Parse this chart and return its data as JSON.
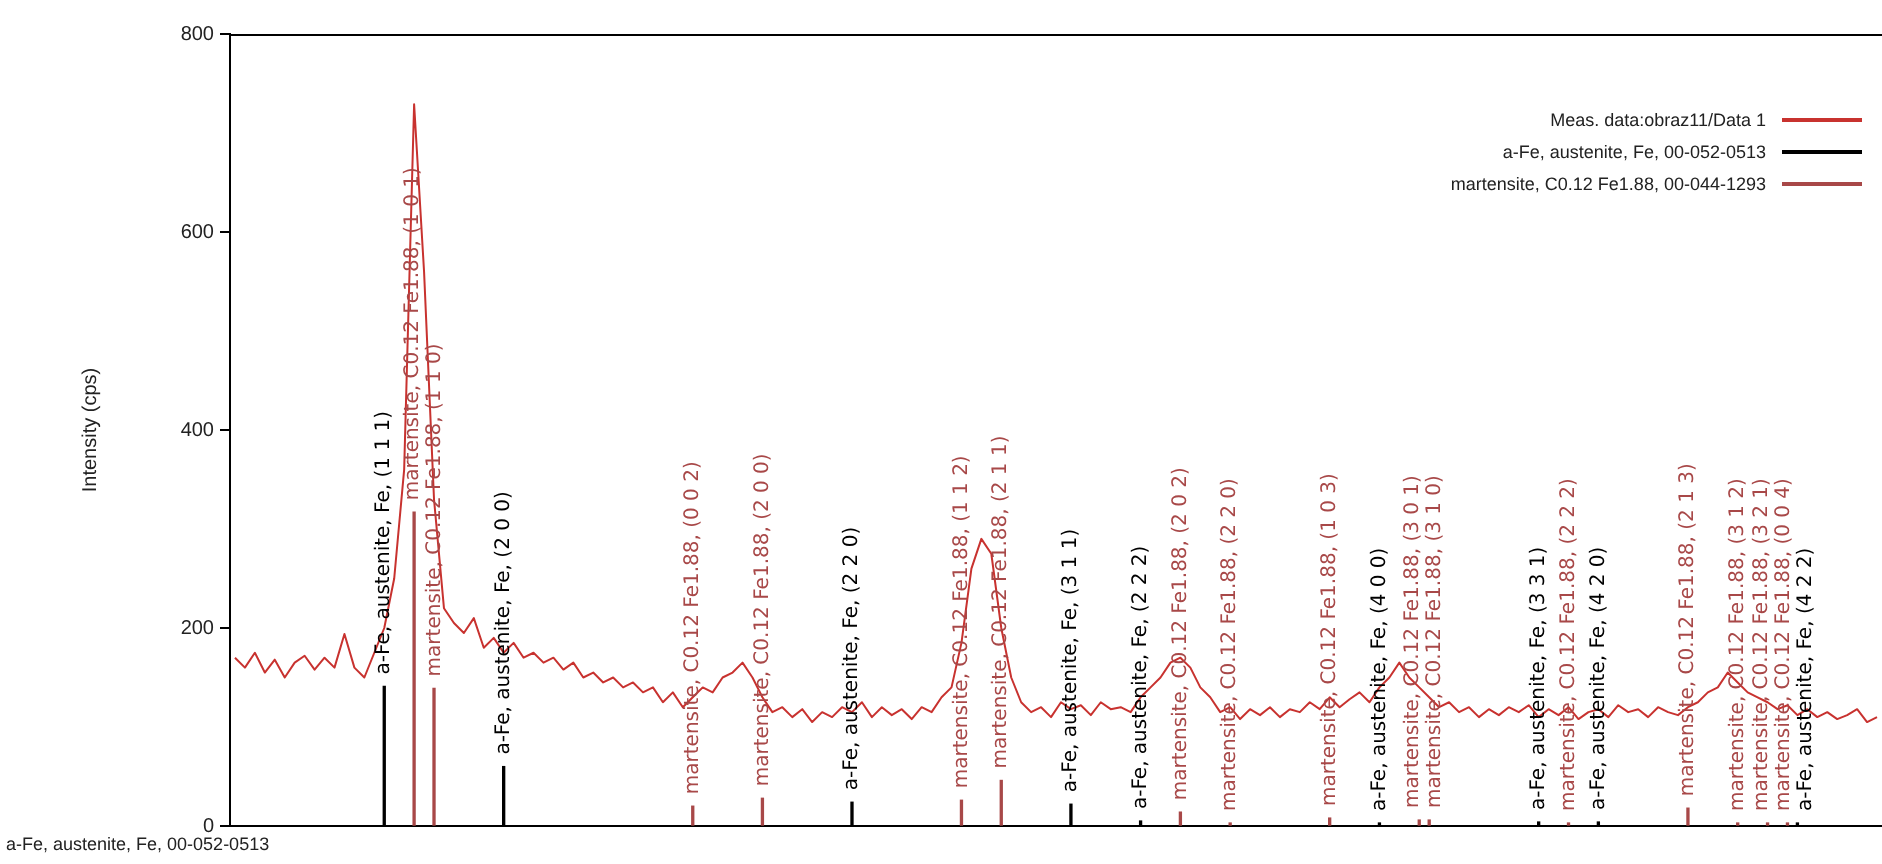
{
  "chart_data": {
    "type": "line",
    "ylabel": "Intensity (cps)",
    "ylim": [
      0,
      800
    ],
    "yticks": [
      0,
      200,
      400,
      600,
      800
    ],
    "grid": false,
    "legend": "top right",
    "tick_labels": "y",
    "marker": "none",
    "annotations": [
      "a-Fe, austenite, Fe, 00-052-0513"
    ],
    "categories": [
      null,
      null,
      null,
      null,
      null,
      null,
      null,
      null,
      null,
      null,
      null,
      null,
      null,
      null,
      null,
      null,
      null,
      null,
      null,
      null,
      null,
      null,
      null,
      null,
      null,
      null,
      null,
      null,
      null,
      null,
      null,
      null,
      null,
      null,
      null,
      null,
      null,
      null,
      null,
      null,
      null,
      null,
      null,
      null,
      null,
      null,
      null,
      null,
      null,
      null,
      null,
      null,
      null,
      null,
      null,
      null,
      null,
      null,
      null,
      null,
      null,
      null,
      null,
      null,
      null,
      null,
      null,
      null,
      null,
      null,
      null,
      null,
      null,
      null,
      null,
      null,
      null,
      null,
      null,
      null,
      null,
      null,
      null,
      null,
      null,
      null,
      null,
      null,
      null,
      null,
      null,
      null,
      null,
      null,
      null,
      null,
      null,
      null,
      null,
      null,
      null,
      null,
      null,
      null,
      null,
      null,
      null,
      null,
      null,
      null,
      null,
      null,
      null,
      null,
      null,
      null,
      null,
      null,
      null,
      null,
      null,
      null,
      null,
      null,
      null,
      null,
      null,
      null,
      null,
      null,
      null,
      null,
      null,
      null,
      null,
      null,
      null,
      null,
      null,
      null,
      null,
      null,
      null,
      null,
      null,
      null,
      null,
      null,
      null,
      null,
      null,
      null,
      null,
      null,
      null,
      null,
      null,
      null,
      null,
      null,
      null,
      null,
      null,
      null,
      null,
      null
    ],
    "series": [
      {
        "name": "Meas. data:obraz11/Data 1",
        "color": "#c8322f",
        "values": [
          170,
          160,
          175,
          155,
          168,
          150,
          165,
          172,
          158,
          170,
          160,
          194,
          160,
          150,
          175,
          200,
          250,
          360,
          729,
          560,
          330,
          220,
          205,
          195,
          210,
          180,
          190,
          175,
          185,
          170,
          175,
          165,
          170,
          158,
          165,
          150,
          155,
          145,
          150,
          140,
          145,
          135,
          140,
          125,
          135,
          120,
          130,
          140,
          135,
          150,
          155,
          165,
          150,
          130,
          115,
          120,
          110,
          118,
          105,
          115,
          110,
          120,
          115,
          125,
          110,
          120,
          112,
          118,
          108,
          120,
          115,
          130,
          140,
          185,
          260,
          290,
          275,
          200,
          150,
          125,
          115,
          120,
          110,
          125,
          118,
          122,
          112,
          125,
          118,
          120,
          115,
          130,
          140,
          150,
          165,
          170,
          160,
          140,
          130,
          115,
          120,
          108,
          118,
          112,
          120,
          110,
          118,
          115,
          125,
          118,
          130,
          120,
          128,
          135,
          125,
          140,
          150,
          165,
          150,
          140,
          130,
          120,
          125,
          115,
          120,
          110,
          118,
          112,
          120,
          115,
          122,
          110,
          118,
          112,
          120,
          108,
          115,
          118,
          110,
          122,
          115,
          118,
          110,
          120,
          115,
          112,
          120,
          125,
          135,
          140,
          155,
          145,
          135,
          130,
          125,
          118,
          122,
          112,
          118,
          110,
          115,
          108,
          112,
          118,
          105,
          110
        ]
      },
      {
        "name": "a-Fe, austenite, Fe, 00-052-0513",
        "type": "bar",
        "color": "#000000",
        "values": [
          null,
          null,
          null,
          null,
          null,
          null,
          null,
          null,
          null,
          null,
          null,
          null,
          null,
          null,
          null,
          141,
          null,
          null,
          null,
          null,
          null,
          null,
          null,
          null,
          null,
          null,
          null,
          60,
          null,
          null,
          null,
          null,
          null,
          null,
          null,
          null,
          null,
          null,
          null,
          null,
          null,
          null,
          null,
          null,
          null,
          null,
          null,
          null,
          null,
          null,
          null,
          null,
          null,
          null,
          null,
          null,
          null,
          null,
          null,
          null,
          null,
          null,
          24,
          null,
          null,
          null,
          null,
          null,
          null,
          null,
          null,
          null,
          null,
          null,
          null,
          null,
          null,
          null,
          null,
          null,
          null,
          null,
          null,
          null,
          22,
          null,
          null,
          null,
          null,
          null,
          null,
          5,
          null,
          null,
          null,
          null,
          null,
          null,
          null,
          null,
          null,
          null,
          null,
          null,
          null,
          null,
          null,
          null,
          null,
          null,
          null,
          null,
          null,
          null,
          null,
          3,
          null,
          null,
          null,
          null,
          null,
          null,
          null,
          null,
          null,
          null,
          null,
          null,
          null,
          null,
          null,
          4,
          null,
          null,
          null,
          null,
          null,
          4,
          null,
          null,
          null,
          null,
          null,
          null,
          null,
          null,
          null,
          null,
          null,
          null,
          null,
          null,
          null,
          null,
          null,
          null,
          null,
          3,
          null,
          null,
          null,
          null,
          null,
          null,
          null,
          null
        ],
        "value_labels": [
          null,
          null,
          null,
          null,
          null,
          null,
          null,
          null,
          null,
          null,
          null,
          null,
          null,
          null,
          null,
          "a-Fe, austenite, Fe, (1 1 1)",
          null,
          null,
          null,
          null,
          null,
          null,
          null,
          null,
          null,
          null,
          null,
          "a-Fe, austenite, Fe, (2 0 0)",
          null,
          null,
          null,
          null,
          null,
          null,
          null,
          null,
          null,
          null,
          null,
          null,
          null,
          null,
          null,
          null,
          null,
          null,
          null,
          null,
          null,
          null,
          null,
          null,
          null,
          null,
          null,
          null,
          null,
          null,
          null,
          null,
          null,
          null,
          "a-Fe, austenite, Fe, (2 2 0)",
          null,
          null,
          null,
          null,
          null,
          null,
          null,
          null,
          null,
          null,
          null,
          null,
          null,
          null,
          null,
          null,
          null,
          null,
          null,
          null,
          null,
          "a-Fe, austenite, Fe, (3 1 1)",
          null,
          null,
          null,
          null,
          null,
          null,
          "a-Fe, austenite, Fe, (2 2 2)",
          null,
          null,
          null,
          null,
          null,
          null,
          null,
          null,
          null,
          null,
          null,
          null,
          null,
          null,
          null,
          null,
          null,
          null,
          null,
          null,
          null,
          null,
          null,
          "a-Fe, austenite, Fe, (4 0 0)",
          null,
          null,
          null,
          null,
          null,
          null,
          null,
          null,
          null,
          null,
          null,
          null,
          null,
          null,
          null,
          "a-Fe, austenite, Fe, (3 3 1)",
          null,
          null,
          null,
          null,
          null,
          "a-Fe, austenite, Fe, (4 2 0)",
          null,
          null,
          null,
          null,
          null,
          null,
          null,
          null,
          null,
          null,
          null,
          null,
          null,
          null,
          null,
          null,
          null,
          null,
          null,
          "a-Fe, austenite, Fe, (4 2 2)",
          null,
          null,
          null,
          null,
          null,
          null,
          null,
          null
        ]
      },
      {
        "name": "martensite, C0.12 Fe1.88, 00-044-1293",
        "type": "bar",
        "color": "#a84848",
        "values": [
          null,
          null,
          null,
          null,
          null,
          null,
          null,
          null,
          null,
          null,
          null,
          null,
          null,
          null,
          null,
          null,
          null,
          null,
          317,
          null,
          139,
          null,
          null,
          null,
          null,
          null,
          null,
          null,
          null,
          null,
          null,
          null,
          null,
          null,
          null,
          null,
          null,
          null,
          null,
          null,
          null,
          null,
          null,
          null,
          null,
          null,
          20,
          null,
          null,
          null,
          null,
          null,
          null,
          28,
          null,
          null,
          null,
          null,
          null,
          null,
          null,
          null,
          null,
          null,
          null,
          null,
          null,
          null,
          null,
          null,
          null,
          null,
          null,
          26,
          null,
          null,
          null,
          46,
          null,
          null,
          null,
          null,
          null,
          null,
          null,
          null,
          null,
          null,
          null,
          null,
          null,
          null,
          null,
          null,
          null,
          14,
          null,
          null,
          null,
          null,
          3,
          null,
          null,
          null,
          null,
          null,
          null,
          null,
          null,
          null,
          8,
          null,
          null,
          null,
          null,
          null,
          null,
          null,
          null,
          6,
          6,
          null,
          null,
          null,
          null,
          null,
          null,
          null,
          null,
          null,
          null,
          null,
          null,
          null,
          3,
          null,
          null,
          null,
          null,
          null,
          null,
          null,
          null,
          null,
          null,
          null,
          18,
          null,
          null,
          null,
          null,
          3,
          null,
          null,
          3,
          null,
          3,
          null,
          null,
          null,
          null,
          null,
          null,
          null,
          null,
          null
        ],
        "value_labels": [
          null,
          null,
          null,
          null,
          null,
          null,
          null,
          null,
          null,
          null,
          null,
          null,
          null,
          null,
          null,
          null,
          null,
          null,
          "martensite, C0.12 Fe1.88, (1 0 1)",
          null,
          "martensite, C0.12 Fe1.88, (1 1 0)",
          null,
          null,
          null,
          null,
          null,
          null,
          null,
          null,
          null,
          null,
          null,
          null,
          null,
          null,
          null,
          null,
          null,
          null,
          null,
          null,
          null,
          null,
          null,
          null,
          null,
          "martensite, C0.12 Fe1.88, (0 0 2)",
          null,
          null,
          null,
          null,
          null,
          null,
          "martensite, C0.12 Fe1.88, (2 0 0)",
          null,
          null,
          null,
          null,
          null,
          null,
          null,
          null,
          null,
          null,
          null,
          null,
          null,
          null,
          null,
          null,
          null,
          null,
          null,
          "martensite, C0.12 Fe1.88, (1 1 2)",
          null,
          null,
          null,
          "martensite, C0.12 Fe1.88, (2 1 1)",
          null,
          null,
          null,
          null,
          null,
          null,
          null,
          null,
          null,
          null,
          null,
          null,
          null,
          null,
          null,
          null,
          null,
          "martensite, C0.12 Fe1.88, (2 0 2)",
          null,
          null,
          null,
          null,
          "martensite, C0.12 Fe1.88, (2 2 0)",
          null,
          null,
          null,
          null,
          null,
          null,
          null,
          null,
          null,
          "martensite, C0.12 Fe1.88, (1 0 3)",
          null,
          null,
          null,
          null,
          null,
          null,
          null,
          null,
          "martensite, C0.12 Fe1.88, (3 0 1)",
          "martensite, C0.12 Fe1.88, (3 1 0)",
          null,
          null,
          null,
          null,
          null,
          null,
          null,
          null,
          null,
          null,
          null,
          null,
          null,
          "martensite, C0.12 Fe1.88, (2 2 2)",
          null,
          null,
          null,
          null,
          null,
          null,
          null,
          null,
          null,
          null,
          null,
          "martensite, C0.12 Fe1.88, (2 1 3)",
          null,
          null,
          null,
          null,
          "martensite, C0.12 Fe1.88, (3 1 2)",
          null,
          null,
          "martensite, C0.12 Fe1.88, (3 2 1)",
          null,
          "martensite, C0.12 Fe1.88, (0 0 4)",
          null,
          null,
          null,
          null,
          null,
          null,
          null,
          null,
          null
        ]
      }
    ]
  }
}
